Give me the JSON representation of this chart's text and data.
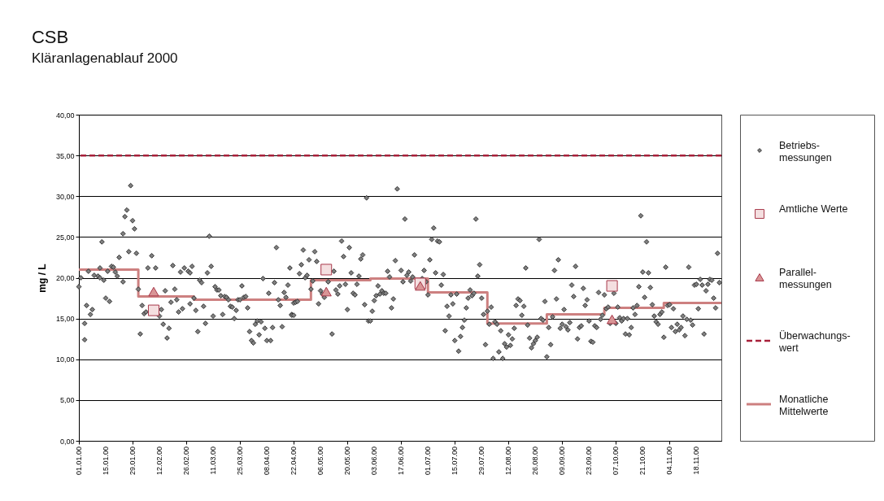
{
  "chart_data": {
    "type": "scatter",
    "title": "CSB",
    "subtitle": "Kläranlagenablauf 2000",
    "ylabel": "mg / L",
    "xlim": [
      "2000-01-01",
      "2000-12-01"
    ],
    "xticks": [
      {
        "value": "2000-01-01",
        "label": "01.01.00"
      },
      {
        "value": "2000-01-15",
        "label": "15.01.00"
      },
      {
        "value": "2000-01-29",
        "label": "29.01.00"
      },
      {
        "value": "2000-02-12",
        "label": "12.02.00"
      },
      {
        "value": "2000-02-26",
        "label": "26.02.00"
      },
      {
        "value": "2000-03-11",
        "label": "11.03.00"
      },
      {
        "value": "2000-03-25",
        "label": "25.03.00"
      },
      {
        "value": "2000-04-08",
        "label": "08.04.00"
      },
      {
        "value": "2000-04-22",
        "label": "22.04.00"
      },
      {
        "value": "2000-05-06",
        "label": "06.05.00"
      },
      {
        "value": "2000-05-20",
        "label": "20.05.00"
      },
      {
        "value": "2000-06-03",
        "label": "03.06.00"
      },
      {
        "value": "2000-06-17",
        "label": "17.06.00"
      },
      {
        "value": "2000-07-01",
        "label": "01.07.00"
      },
      {
        "value": "2000-07-15",
        "label": "15.07.00"
      },
      {
        "value": "2000-07-29",
        "label": "29.07.00"
      },
      {
        "value": "2000-08-12",
        "label": "12.08.00"
      },
      {
        "value": "2000-08-26",
        "label": "26.08.00"
      },
      {
        "value": "2000-09-09",
        "label": "09.09.00"
      },
      {
        "value": "2000-09-23",
        "label": "23.09.00"
      },
      {
        "value": "2000-10-07",
        "label": "07.10.00"
      },
      {
        "value": "2000-10-21",
        "label": "21.10.00"
      },
      {
        "value": "2000-11-04",
        "label": "04.11.00"
      },
      {
        "value": "2000-11-18",
        "label": "18.11.00"
      }
    ],
    "ylim": [
      0,
      40
    ],
    "yticks": [
      {
        "value": 0,
        "label": "0,00"
      },
      {
        "value": 5,
        "label": "5,00"
      },
      {
        "value": 10,
        "label": "10,00"
      },
      {
        "value": 15,
        "label": "15,00"
      },
      {
        "value": 20,
        "label": "20,00"
      },
      {
        "value": 25,
        "label": "25,00"
      },
      {
        "value": 30,
        "label": "30,00"
      },
      {
        "value": 35,
        "label": "35,00"
      },
      {
        "value": 40,
        "label": "40,00"
      }
    ],
    "grid": "y",
    "legend": "right",
    "ref_lines": [
      {
        "axis": "y",
        "value": 35,
        "label": "Überwachungs-\nwert",
        "color": "#a8203a",
        "line_style": "dashed"
      }
    ],
    "series": [
      {
        "name": "Betriebs-\nmessungen",
        "type": "scatter",
        "marker": "diamond",
        "color": "#808080",
        "x": [
          "2000-01-01",
          "2000-01-02",
          "2000-01-04",
          "2000-01-04",
          "2000-01-05",
          "2000-01-06",
          "2000-01-07",
          "2000-01-08",
          "2000-01-09",
          "2000-01-11",
          "2000-01-12",
          "2000-01-12",
          "2000-01-13",
          "2000-01-14",
          "2000-01-15",
          "2000-01-16",
          "2000-01-17",
          "2000-01-18",
          "2000-01-19",
          "2000-01-20",
          "2000-01-21",
          "2000-01-22",
          "2000-01-24",
          "2000-01-24",
          "2000-01-25",
          "2000-01-26",
          "2000-01-27",
          "2000-01-28",
          "2000-01-29",
          "2000-01-30",
          "2000-01-31",
          "2000-02-01",
          "2000-02-02",
          "2000-02-03",
          "2000-02-04",
          "2000-02-05",
          "2000-02-06",
          "2000-02-08",
          "2000-02-10",
          "2000-02-12",
          "2000-02-13",
          "2000-02-14",
          "2000-02-15",
          "2000-02-16",
          "2000-02-17",
          "2000-02-18",
          "2000-02-19",
          "2000-02-20",
          "2000-02-21",
          "2000-02-22",
          "2000-02-23",
          "2000-02-24",
          "2000-02-25",
          "2000-02-27",
          "2000-02-28",
          "2000-02-28",
          "2000-02-29",
          "2000-03-01",
          "2000-03-02",
          "2000-03-03",
          "2000-03-04",
          "2000-03-05",
          "2000-03-06",
          "2000-03-07",
          "2000-03-08",
          "2000-03-09",
          "2000-03-10",
          "2000-03-11",
          "2000-03-12",
          "2000-03-13",
          "2000-03-14",
          "2000-03-15",
          "2000-03-16",
          "2000-03-17",
          "2000-03-18",
          "2000-03-19",
          "2000-03-20",
          "2000-03-21",
          "2000-03-22",
          "2000-03-23",
          "2000-03-24",
          "2000-03-25",
          "2000-03-26",
          "2000-03-27",
          "2000-03-28",
          "2000-03-29",
          "2000-03-30",
          "2000-03-31",
          "2000-04-01",
          "2000-04-02",
          "2000-04-03",
          "2000-04-04",
          "2000-04-05",
          "2000-04-06",
          "2000-04-07",
          "2000-04-08",
          "2000-04-09",
          "2000-04-10",
          "2000-04-11",
          "2000-04-12",
          "2000-04-13",
          "2000-04-14",
          "2000-04-15",
          "2000-04-16",
          "2000-04-17",
          "2000-04-18",
          "2000-04-19",
          "2000-04-20",
          "2000-04-21",
          "2000-04-21",
          "2000-04-22",
          "2000-04-22",
          "2000-04-23",
          "2000-04-24",
          "2000-04-25",
          "2000-04-26",
          "2000-04-27",
          "2000-04-28",
          "2000-04-29",
          "2000-04-30",
          "2000-05-01",
          "2000-05-02",
          "2000-05-03",
          "2000-05-04",
          "2000-05-05",
          "2000-05-06",
          "2000-05-07",
          "2000-05-08",
          "2000-05-10",
          "2000-05-12",
          "2000-05-13",
          "2000-05-14",
          "2000-05-15",
          "2000-05-16",
          "2000-05-17",
          "2000-05-18",
          "2000-05-19",
          "2000-05-20",
          "2000-05-21",
          "2000-05-22",
          "2000-05-23",
          "2000-05-24",
          "2000-05-25",
          "2000-05-26",
          "2000-05-27",
          "2000-05-28",
          "2000-05-29",
          "2000-05-30",
          "2000-05-31",
          "2000-06-01",
          "2000-06-02",
          "2000-06-03",
          "2000-06-04",
          "2000-06-05",
          "2000-06-06",
          "2000-06-07",
          "2000-06-08",
          "2000-06-09",
          "2000-06-10",
          "2000-06-11",
          "2000-06-12",
          "2000-06-13",
          "2000-06-14",
          "2000-06-15",
          "2000-06-17",
          "2000-06-18",
          "2000-06-19",
          "2000-06-20",
          "2000-06-21",
          "2000-06-22",
          "2000-06-23",
          "2000-06-24",
          "2000-06-28",
          "2000-06-29",
          "2000-06-30",
          "2000-07-01",
          "2000-07-02",
          "2000-07-03",
          "2000-07-04",
          "2000-07-05",
          "2000-07-06",
          "2000-07-07",
          "2000-07-08",
          "2000-07-09",
          "2000-07-10",
          "2000-07-11",
          "2000-07-12",
          "2000-07-13",
          "2000-07-14",
          "2000-07-15",
          "2000-07-16",
          "2000-07-17",
          "2000-07-18",
          "2000-07-19",
          "2000-07-20",
          "2000-07-21",
          "2000-07-22",
          "2000-07-23",
          "2000-07-24",
          "2000-07-25",
          "2000-07-26",
          "2000-07-27",
          "2000-07-28",
          "2000-07-29",
          "2000-07-30",
          "2000-07-31",
          "2000-08-01",
          "2000-08-02",
          "2000-08-03",
          "2000-08-04",
          "2000-08-05",
          "2000-08-06",
          "2000-08-07",
          "2000-08-08",
          "2000-08-09",
          "2000-08-10",
          "2000-08-11",
          "2000-08-12",
          "2000-08-13",
          "2000-08-14",
          "2000-08-15",
          "2000-08-16",
          "2000-08-17",
          "2000-08-18",
          "2000-08-19",
          "2000-08-20",
          "2000-08-21",
          "2000-08-22",
          "2000-08-23",
          "2000-08-24",
          "2000-08-25",
          "2000-08-26",
          "2000-08-27",
          "2000-08-28",
          "2000-08-29",
          "2000-08-30",
          "2000-08-31",
          "2000-09-01",
          "2000-09-02",
          "2000-09-03",
          "2000-09-04",
          "2000-09-05",
          "2000-09-06",
          "2000-09-07",
          "2000-09-08",
          "2000-09-09",
          "2000-09-10",
          "2000-09-11",
          "2000-09-12",
          "2000-09-13",
          "2000-09-14",
          "2000-09-15",
          "2000-09-16",
          "2000-09-17",
          "2000-09-18",
          "2000-09-19",
          "2000-09-20",
          "2000-09-21",
          "2000-09-22",
          "2000-09-23",
          "2000-09-24",
          "2000-09-25",
          "2000-09-26",
          "2000-09-27",
          "2000-09-28",
          "2000-09-29",
          "2000-09-30",
          "2000-10-01",
          "2000-10-02",
          "2000-10-03",
          "2000-10-04",
          "2000-10-06",
          "2000-10-07",
          "2000-10-08",
          "2000-10-09",
          "2000-10-10",
          "2000-10-11",
          "2000-10-12",
          "2000-10-13",
          "2000-10-14",
          "2000-10-15",
          "2000-10-16",
          "2000-10-17",
          "2000-10-18",
          "2000-10-19",
          "2000-10-20",
          "2000-10-21",
          "2000-10-22",
          "2000-10-23",
          "2000-10-24",
          "2000-10-25",
          "2000-10-26",
          "2000-10-27",
          "2000-10-28",
          "2000-10-29",
          "2000-10-30",
          "2000-10-31",
          "2000-11-01",
          "2000-11-02",
          "2000-11-03",
          "2000-11-04",
          "2000-11-05",
          "2000-11-06",
          "2000-11-07",
          "2000-11-08",
          "2000-11-09",
          "2000-11-10",
          "2000-11-11",
          "2000-11-12",
          "2000-11-13",
          "2000-11-14",
          "2000-11-15",
          "2000-11-16",
          "2000-11-17",
          "2000-11-18",
          "2000-11-19",
          "2000-11-20",
          "2000-11-21",
          "2000-11-22",
          "2000-11-23",
          "2000-11-24",
          "2000-11-25",
          "2000-11-26",
          "2000-11-27",
          "2000-11-28",
          "2000-11-29",
          "2000-11-30"
        ],
        "values": [
          18.9,
          20.0,
          12.4,
          14.4,
          16.6,
          20.8,
          15.5,
          16.1,
          20.3,
          20.2,
          21.2,
          20.0,
          24.4,
          19.7,
          17.5,
          20.8,
          17.1,
          21.4,
          21.3,
          20.7,
          20.2,
          22.5,
          25.4,
          19.5,
          27.5,
          28.3,
          23.2,
          31.3,
          27.0,
          26.0,
          23.0,
          18.6,
          13.1,
          16.6,
          15.6,
          15.8,
          21.2,
          22.7,
          21.2,
          15.3,
          16.1,
          14.3,
          18.4,
          12.6,
          13.8,
          17.0,
          21.5,
          18.6,
          17.3,
          15.8,
          20.7,
          16.2,
          21.2,
          20.8,
          20.6,
          16.8,
          21.4,
          17.5,
          16.0,
          13.4,
          19.7,
          19.4,
          16.5,
          14.4,
          20.6,
          25.1,
          21.4,
          15.3,
          18.9,
          18.5,
          18.5,
          17.8,
          15.5,
          17.7,
          17.6,
          17.3,
          16.5,
          16.4,
          15.0,
          16.0,
          17.3,
          17.3,
          19.0,
          17.6,
          17.7,
          16.3,
          13.4,
          12.3,
          12.0,
          14.3,
          14.7,
          13.0,
          14.6,
          19.9,
          13.8,
          12.3,
          18.1,
          12.3,
          13.9,
          19.4,
          23.7,
          17.3,
          16.6,
          14.0,
          18.2,
          17.6,
          19.1,
          21.2,
          15.5,
          15.4,
          16.9,
          15.4,
          17.0,
          17.1,
          20.5,
          21.6,
          23.4,
          20.0,
          20.3,
          22.2,
          18.6,
          19.6,
          23.2,
          22.0,
          16.8,
          18.4,
          18.0,
          17.6,
          19.5,
          13.1,
          20.8,
          18.5,
          18.0,
          19.0,
          24.5,
          22.6,
          19.2,
          16.1,
          23.7,
          20.6,
          18.1,
          17.9,
          19.2,
          20.2,
          22.3,
          22.8,
          16.7,
          29.8,
          14.7,
          14.7,
          15.9,
          17.2,
          17.8,
          19.0,
          18.0,
          18.4,
          18.1,
          18.1,
          20.8,
          20.1,
          16.3,
          17.4,
          22.1,
          30.9,
          20.9,
          19.5,
          27.2,
          20.3,
          20.7,
          19.6,
          20.1,
          22.8,
          19.9,
          20.9,
          19.5,
          17.9,
          22.2,
          24.7,
          26.1,
          20.6,
          24.5,
          24.4,
          19.1,
          20.4,
          13.5,
          16.5,
          15.3,
          17.9,
          16.8,
          12.3,
          18.0,
          11.0,
          12.8,
          13.9,
          14.8,
          16.3,
          17.5,
          18.5,
          17.8,
          18.1,
          27.2,
          20.2,
          21.6,
          17.5,
          15.5,
          11.8,
          15.9,
          14.3,
          16.4,
          10.1,
          14.6,
          14.3,
          10.9,
          13.5,
          10.1,
          11.9,
          11.5,
          13.0,
          11.7,
          12.5,
          13.8,
          16.6,
          17.4,
          17.2,
          15.4,
          16.5,
          21.2,
          14.2,
          12.6,
          11.4,
          11.9,
          12.3,
          12.7,
          24.7,
          15.0,
          14.8,
          17.1,
          10.3,
          13.9,
          11.8,
          15.2,
          20.9,
          17.4,
          22.2,
          13.8,
          14.3,
          16.1,
          14.0,
          13.6,
          14.5,
          19.1,
          17.7,
          21.4,
          12.5,
          13.9,
          14.1,
          18.7,
          16.6,
          17.3,
          14.7,
          12.2,
          12.1,
          14.1,
          13.9,
          18.2,
          14.9,
          15.4,
          17.9,
          16.2,
          16.4,
          14.4,
          18.1,
          14.4,
          16.4,
          15.1,
          14.7,
          15.0,
          13.1,
          15.0,
          13.0,
          13.9,
          16.3,
          15.5,
          16.6,
          18.9,
          27.6,
          20.7,
          17.6,
          24.4,
          20.6,
          18.8,
          16.7,
          15.3,
          14.6,
          14.3,
          15.5,
          15.8,
          12.7,
          21.3,
          16.6,
          16.7,
          13.9,
          16.2,
          13.4,
          14.3,
          13.6,
          13.9,
          15.3,
          12.9,
          14.9,
          21.3,
          14.8,
          14.2,
          19.1,
          19.2,
          16.2,
          19.8,
          19.1,
          13.1,
          18.4,
          19.2,
          19.8,
          19.7,
          17.5,
          16.3,
          23.0,
          19.4
        ]
      },
      {
        "name": "Amtliche Werte",
        "type": "scatter",
        "marker": "square",
        "color": "#f4dfe0",
        "x": [
          "2000-02-09",
          "2000-05-09",
          "2000-06-27",
          "2000-10-05"
        ],
        "values": [
          16.0,
          21.0,
          19.3,
          19.0
        ]
      },
      {
        "name": "Parallel-\nmessungen",
        "type": "scatter",
        "marker": "triangle",
        "color": "#d99596",
        "x": [
          "2000-02-09",
          "2000-05-09",
          "2000-06-27",
          "2000-10-05"
        ],
        "values": [
          18.3,
          18.3,
          19.0,
          14.9
        ]
      },
      {
        "name": "Monatliche\nMittelwerte",
        "type": "step",
        "color": "#cd8080",
        "x": [
          "2000-01-01",
          "2000-02-01",
          "2000-03-01",
          "2000-04-01",
          "2000-05-01",
          "2000-06-01",
          "2000-07-01",
          "2000-08-01",
          "2000-09-01",
          "2000-10-01",
          "2000-11-01",
          "2000-12-01"
        ],
        "values": [
          21.0,
          17.7,
          17.3,
          17.3,
          19.7,
          19.9,
          18.2,
          14.4,
          15.5,
          16.3,
          16.9,
          16.9
        ]
      }
    ]
  }
}
